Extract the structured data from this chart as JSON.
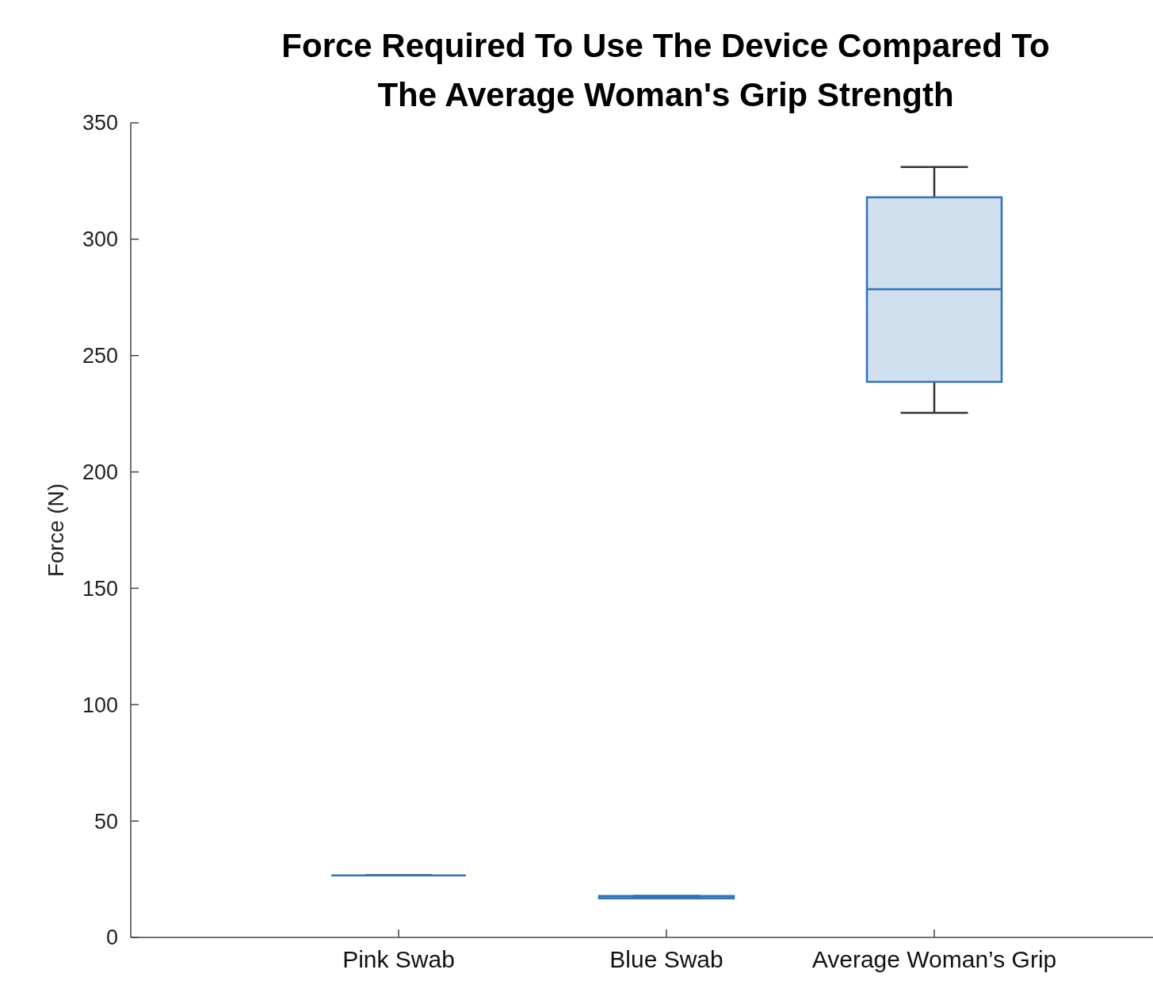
{
  "chart_data": {
    "type": "box",
    "title": "Force Required To Use The Device Compared To\nThe Average Woman's Grip Strength",
    "ylabel": "Force (N)",
    "categories": [
      "Pink Swab",
      "Blue Swab",
      "Average Woman’s Grip"
    ],
    "series": [
      {
        "color": "#2e73b8",
        "boxes": [
          {
            "low": 26.6,
            "q1": 26.6,
            "median": 26.6,
            "q3": 26.6,
            "high": 26.6
          },
          {
            "low": 16.8,
            "q1": 16.8,
            "median": 16.8,
            "q3": 17.8,
            "high": 17.8
          },
          {
            "low": 225.4,
            "q1": 238.7,
            "median": 278.5,
            "q3": 318,
            "high": 331
          }
        ]
      }
    ],
    "ylim": [
      0,
      350
    ],
    "yticks": [
      0,
      50,
      100,
      150,
      200,
      250,
      300,
      350
    ],
    "grid": false
  }
}
